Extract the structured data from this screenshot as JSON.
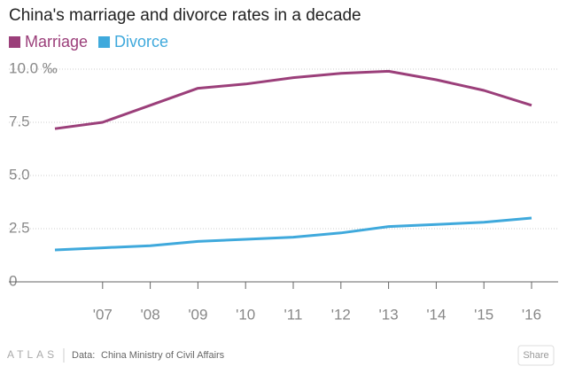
{
  "chart_data": {
    "type": "line",
    "title": "China's marriage and divorce rates in a decade",
    "categories": [
      null,
      "'07",
      "'08",
      "'09",
      "'10",
      "'11",
      "'12",
      "'13",
      "'14",
      "'15",
      "'16"
    ],
    "series": [
      {
        "name": "Marriage",
        "color": "#9b3f7a",
        "values": [
          7.2,
          7.5,
          8.3,
          9.1,
          9.3,
          9.6,
          9.8,
          9.9,
          9.5,
          9.0,
          8.3
        ]
      },
      {
        "name": "Divorce",
        "color": "#3fa9dc",
        "values": [
          1.5,
          1.6,
          1.7,
          1.9,
          2.0,
          2.1,
          2.3,
          2.6,
          2.7,
          2.8,
          3.0
        ]
      }
    ],
    "ylim": [
      0,
      10
    ],
    "yticks": [
      0,
      {
        "value": 2.5,
        "label": "2.5"
      },
      {
        "value": 5.0,
        "label": "5.0"
      },
      {
        "value": 7.5,
        "label": "7.5"
      },
      {
        "value": 10,
        "label": "10.0 ‰"
      }
    ],
    "grid": true
  },
  "footer": {
    "brand": "ATLAS",
    "source_label": "Data:",
    "source": "China Ministry of Civil Affairs",
    "share": "Share"
  }
}
